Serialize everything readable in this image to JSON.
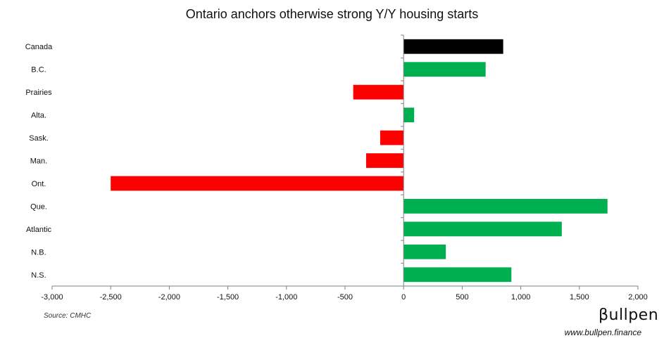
{
  "chart_data": {
    "type": "bar",
    "orientation": "horizontal",
    "title": "Ontario anchors otherwise strong Y/Y housing starts",
    "xlabel": "",
    "ylabel": "",
    "categories": [
      "Canada",
      "B.C.",
      "Prairies",
      "Alta.",
      "Sask.",
      "Man.",
      "Ont.",
      "Que.",
      "Atlantic",
      "N.B.",
      "N.S."
    ],
    "values": [
      850,
      700,
      -430,
      90,
      -200,
      -320,
      -2500,
      1740,
      1350,
      360,
      920
    ],
    "colors": [
      "#000000",
      "#00b050",
      "#ff0000",
      "#00b050",
      "#ff0000",
      "#ff0000",
      "#ff0000",
      "#00b050",
      "#00b050",
      "#00b050",
      "#00b050"
    ],
    "xlim": [
      -3000,
      2000
    ],
    "xticks": [
      -3000,
      -2500,
      -2000,
      -1500,
      -1000,
      -500,
      0,
      500,
      1000,
      1500,
      2000
    ],
    "xtick_labels": [
      "-3,000",
      "-2,500",
      "-2,000",
      "-1,500",
      "-1,000",
      "-500",
      "0",
      "500",
      "1,000",
      "1,500",
      "2,000"
    ],
    "grid": false,
    "legend": "none"
  },
  "footer": {
    "source": "Source: CMHC",
    "brand": "βullpen",
    "url": "www.bullpen.finance"
  }
}
